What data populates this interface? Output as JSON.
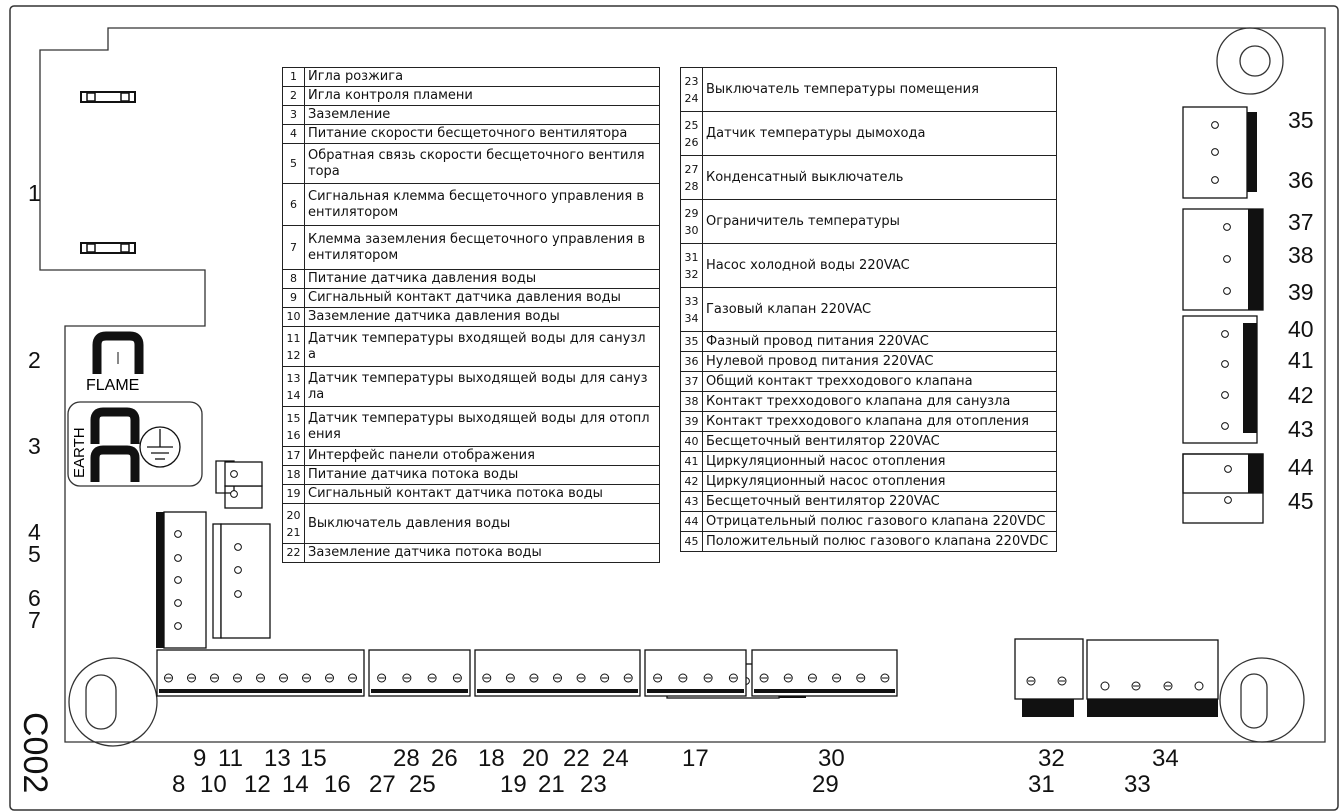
{
  "diagram": {
    "board_code": "C002",
    "flame_label": "FLAME",
    "earth_label": "EARTH"
  },
  "left_table": [
    {
      "nums": [
        "1"
      ],
      "text": "Игла розжига"
    },
    {
      "nums": [
        "2"
      ],
      "text": "Игла контроля пламени"
    },
    {
      "nums": [
        "3"
      ],
      "text": "Заземление"
    },
    {
      "nums": [
        "4"
      ],
      "text": "Питание скорости бесщеточного вентилятора"
    },
    {
      "nums": [
        "5"
      ],
      "text": "Обратная связь скорости бесщеточного вентиля тора"
    },
    {
      "nums": [
        "6"
      ],
      "text": "Сигнальная клемма бесщеточного управления в ентилятором"
    },
    {
      "nums": [
        "7"
      ],
      "text": "Клемма заземления бесщеточного управления в ентилятором"
    },
    {
      "nums": [
        "8"
      ],
      "text": "Питание датчика давления воды"
    },
    {
      "nums": [
        "9"
      ],
      "text": "Сигнальный контакт датчика давления воды"
    },
    {
      "nums": [
        "10"
      ],
      "text": "Заземление датчика давления воды"
    },
    {
      "nums": [
        "11",
        "12"
      ],
      "text": "Датчик температуры входящей воды для санузл а"
    },
    {
      "nums": [
        "13",
        "14"
      ],
      "text": "Датчик температуры выходящей воды для сануз ла"
    },
    {
      "nums": [
        "15",
        "16"
      ],
      "text": "Датчик температуры выходящей воды для отопл ения"
    },
    {
      "nums": [
        "17"
      ],
      "text": "Интерфейс панели отображения"
    },
    {
      "nums": [
        "18"
      ],
      "text": "Питание датчика потока воды"
    },
    {
      "nums": [
        "19"
      ],
      "text": "Сигнальный контакт датчика потока воды"
    },
    {
      "nums": [
        "20",
        "21"
      ],
      "text": "Выключатель давления воды"
    },
    {
      "nums": [
        "22"
      ],
      "text": "Заземление датчика потока воды"
    }
  ],
  "right_table": [
    {
      "nums": [
        "23",
        "24"
      ],
      "text": "Выключатель температуры помещения"
    },
    {
      "nums": [
        "25",
        "26"
      ],
      "text": "Датчик температуры дымохода"
    },
    {
      "nums": [
        "27",
        "28"
      ],
      "text": "Конденсатный выключатель"
    },
    {
      "nums": [
        "29",
        "30"
      ],
      "text": "Ограничитель температуры"
    },
    {
      "nums": [
        "31",
        "32"
      ],
      "text": "Насос холодной воды 220VAC"
    },
    {
      "nums": [
        "33",
        "34"
      ],
      "text": "Газовый клапан 220VAC"
    },
    {
      "nums": [
        "35"
      ],
      "text": "Фазный провод питания 220VAC"
    },
    {
      "nums": [
        "36"
      ],
      "text": "Нулевой провод питания 220VAC"
    },
    {
      "nums": [
        "37"
      ],
      "text": "Общий контакт трехходового клапана"
    },
    {
      "nums": [
        "38"
      ],
      "text": "Контакт трехходового клапана для санузла"
    },
    {
      "nums": [
        "39"
      ],
      "text": "Контакт трехходового клапана для отопления"
    },
    {
      "nums": [
        "40"
      ],
      "text": "Бесщеточный вентилятор 220VAC"
    },
    {
      "nums": [
        "41"
      ],
      "text": "Циркуляционный насос отопления"
    },
    {
      "nums": [
        "42"
      ],
      "text": "Циркуляционный насос отопления"
    },
    {
      "nums": [
        "43"
      ],
      "text": "Бесщеточный вентилятор 220VAC"
    },
    {
      "nums": [
        "44"
      ],
      "text": "Отрицательный полюс газового клапана 220VDC"
    },
    {
      "nums": [
        "45"
      ],
      "text": "Положительный полюс газового клапана 220VDC"
    }
  ],
  "left_labels": [
    "1",
    "2",
    "3",
    "4",
    "5",
    "6",
    "7"
  ],
  "right_labels": [
    "35",
    "36",
    "37",
    "38",
    "39",
    "40",
    "41",
    "42",
    "43",
    "44",
    "45"
  ],
  "bottom_labels_top": [
    "9",
    "11",
    "13",
    "15",
    "28",
    "26",
    "18",
    "20",
    "22",
    "24",
    "17",
    "30",
    "32",
    "34"
  ],
  "bottom_labels_bottom": [
    "8",
    "10",
    "12",
    "14",
    "16",
    "27",
    "25",
    "19",
    "21",
    "23",
    "29",
    "31",
    "33"
  ]
}
